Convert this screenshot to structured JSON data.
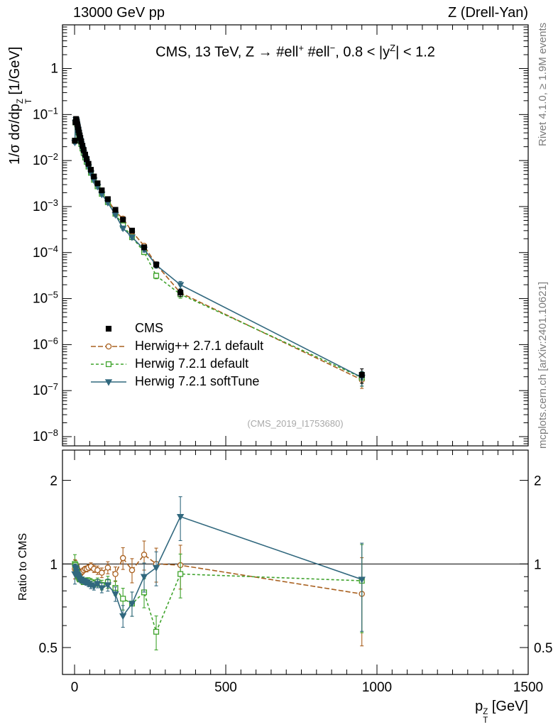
{
  "header": {
    "left": "13000 GeV pp",
    "right": "Z (Drell-Yan)"
  },
  "credits": {
    "rivet": "Rivet 4.1.0, ≥ 1.9M events",
    "mcplots": "mcplots.cern.ch [arXiv:2401.10621]"
  },
  "chart_data": {
    "type": "scatter",
    "title_rich": [
      {
        "t": "CMS, 13 TeV, Z → #ell"
      },
      {
        "t": "+",
        "sup": true
      },
      {
        "t": " #ell"
      },
      {
        "t": "−",
        "sup": true
      },
      {
        "t": ", 0.8 < |y"
      },
      {
        "t": "Z",
        "sup": true
      },
      {
        "t": "| < 1.2"
      }
    ],
    "ylabel_rich": [
      {
        "t": "1/σ dσ/dp"
      },
      {
        "stack": true,
        "sup": "Z",
        "sub": "T"
      },
      {
        "t": " [1/GeV]"
      }
    ],
    "xlabel_rich": [
      {
        "t": "p"
      },
      {
        "stack": true,
        "sup": "Z",
        "sub": "T"
      },
      {
        "t": " [GeV]"
      }
    ],
    "ratio_ylabel": "Ratio to CMS",
    "watermark": "(CMS_2019_I1753680)",
    "xlim": [
      -40,
      1500
    ],
    "x_ticks_major": [
      0,
      500,
      1000,
      1500
    ],
    "x_minor_step": 50,
    "main_ylim": [
      6.3e-09,
      8.9
    ],
    "main_ylog_exponents": [
      0,
      -1,
      -2,
      -3,
      -4,
      -5,
      -6,
      -7,
      -8
    ],
    "ratio_ylim": [
      0.4,
      2.57
    ],
    "ratio_ticks": [
      0.5,
      1,
      2
    ],
    "x": [
      1,
      3,
      5,
      7,
      9,
      11,
      13,
      15,
      17,
      19,
      22,
      26,
      30,
      35,
      40,
      46,
      54,
      64,
      76,
      90,
      110,
      135,
      160,
      190,
      230,
      270,
      350,
      950
    ],
    "cms": [
      0.027,
      0.068,
      0.08,
      0.072,
      0.062,
      0.053,
      0.046,
      0.04,
      0.035,
      0.031,
      0.026,
      0.021,
      0.017,
      0.0135,
      0.0108,
      0.0085,
      0.0063,
      0.0045,
      0.0032,
      0.00225,
      0.00145,
      0.00085,
      0.00052,
      0.0003,
      0.00013,
      5.5e-05,
      1.35e-05,
      2.2e-07
    ],
    "rel_err": [
      0.08,
      0.03,
      0.02,
      0.02,
      0.02,
      0.02,
      0.02,
      0.02,
      0.02,
      0.02,
      0.02,
      0.02,
      0.02,
      0.02,
      0.025,
      0.025,
      0.03,
      0.03,
      0.035,
      0.04,
      0.05,
      0.06,
      0.09,
      0.1,
      0.12,
      0.14,
      0.18,
      0.35
    ],
    "series": [
      {
        "label": "CMS",
        "color": "#000000",
        "marker": "square",
        "fill": true,
        "line": "none",
        "role": "data"
      },
      {
        "label": "Herwig++ 2.7.1 default",
        "color": "#a9601f",
        "marker": "circle",
        "fill": false,
        "line": "dashed",
        "dash": "7,3",
        "ratio": [
          0.96,
          1.0,
          0.99,
          0.98,
          0.96,
          0.95,
          0.94,
          0.93,
          0.92,
          0.92,
          0.93,
          0.94,
          0.95,
          0.96,
          0.96,
          0.97,
          0.98,
          0.96,
          0.95,
          0.93,
          0.97,
          0.92,
          1.05,
          0.95,
          1.08,
          1.0,
          0.99,
          0.78
        ]
      },
      {
        "label": "Herwig 7.2.1 default",
        "color": "#3fa32c",
        "marker": "square",
        "fill": false,
        "line": "dashed",
        "dash": "4,3",
        "ratio": [
          1.0,
          0.99,
          0.97,
          0.95,
          0.93,
          0.91,
          0.9,
          0.89,
          0.88,
          0.88,
          0.88,
          0.87,
          0.86,
          0.86,
          0.87,
          0.87,
          0.86,
          0.85,
          0.86,
          0.84,
          0.86,
          0.82,
          0.75,
          0.72,
          0.79,
          0.57,
          0.92,
          0.87
        ]
      },
      {
        "label": "Herwig 7.2.1 softTune",
        "color": "#31687e",
        "marker": "triangle-down",
        "fill": true,
        "line": "solid",
        "ratio": [
          0.92,
          0.97,
          0.96,
          0.94,
          0.92,
          0.91,
          0.9,
          0.89,
          0.88,
          0.88,
          0.88,
          0.87,
          0.87,
          0.86,
          0.86,
          0.85,
          0.84,
          0.83,
          0.85,
          0.82,
          0.84,
          0.78,
          0.65,
          0.72,
          0.9,
          0.97,
          1.48,
          0.88
        ]
      }
    ]
  }
}
